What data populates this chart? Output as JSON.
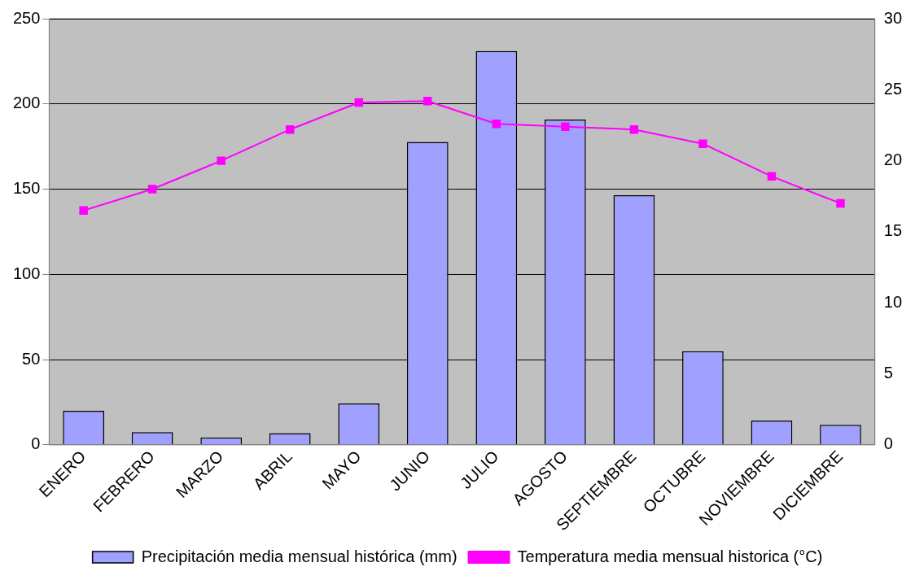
{
  "chart_data": {
    "type": "bar",
    "categories": [
      "ENERO",
      "FEBRERO",
      "MARZO",
      "ABRIL",
      "MAYO",
      "JUNIO",
      "JULIO",
      "AGOSTO",
      "SEPTIEMBRE",
      "OCTUBRE",
      "NOVIEMBRE",
      "DICIEMBRE"
    ],
    "series": [
      {
        "name": "Precipitación media mensual histórica (mm)",
        "color": "#a0a0ff",
        "values": [
          20,
          7.5,
          4.4,
          6.9,
          24.3,
          177.7,
          231,
          190.8,
          146.5,
          54.9,
          14.3,
          11.8
        ]
      },
      {
        "name": "Temperatura media mensual historica (°C)",
        "type": "line",
        "axis": "y2",
        "color": "#ff00ff",
        "marker": "square",
        "values": [
          16.5,
          18,
          20,
          22.2,
          24.1,
          24.2,
          22.6,
          22.4,
          22.2,
          21.2,
          18.9,
          17
        ]
      }
    ],
    "ylim": [
      0,
      250
    ],
    "yticks": [
      0,
      50,
      100,
      150,
      200,
      250
    ],
    "y2lim": [
      0,
      30
    ],
    "y2ticks": [
      0,
      5,
      10,
      15,
      20,
      25,
      30
    ],
    "grid": "y",
    "legend": "bottom"
  }
}
